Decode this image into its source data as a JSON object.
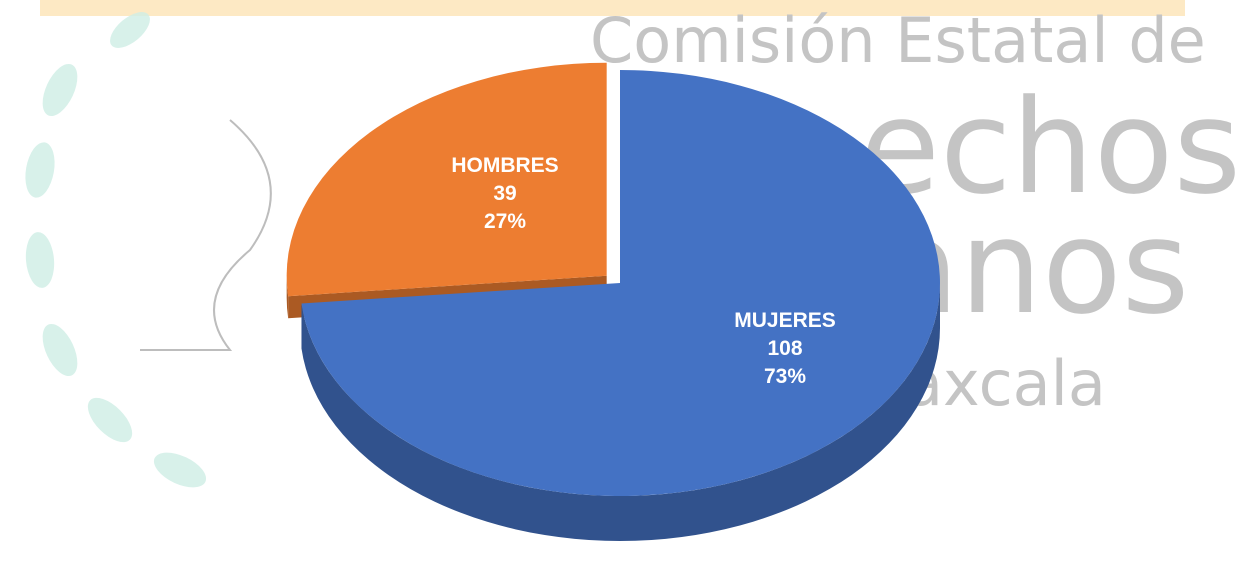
{
  "chart_data": {
    "type": "pie",
    "categories": [
      "MUJERES",
      "HOMBRES"
    ],
    "values": [
      108,
      39
    ],
    "percent_labels": [
      "73%",
      "27%"
    ],
    "colors": [
      "#4472c4",
      "#ed7d31"
    ],
    "watermark": [
      "Comisión Estatal de",
      "echos",
      "anos",
      "axcala"
    ]
  }
}
